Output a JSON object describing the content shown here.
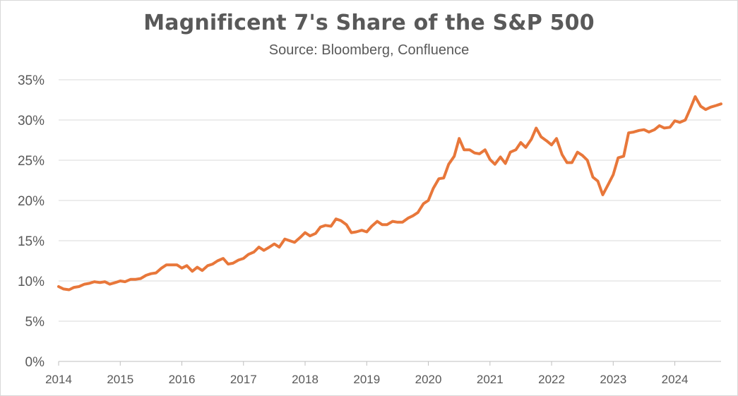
{
  "chart_data": {
    "type": "line",
    "title": "Magnificent 7's Share of the S&P 500",
    "subtitle": "Source: Bloomberg, Confluence",
    "xlabel": "",
    "ylabel": "",
    "xlim": [
      2014.0,
      2024.75
    ],
    "ylim": [
      0,
      35
    ],
    "x_ticks": [
      "2014",
      "2015",
      "2016",
      "2017",
      "2018",
      "2019",
      "2020",
      "2021",
      "2022",
      "2023",
      "2024"
    ],
    "y_ticks": [
      "0%",
      "5%",
      "10%",
      "15%",
      "20%",
      "25%",
      "30%",
      "35%"
    ],
    "grid": "horizontal",
    "series_color": "#E8773A",
    "series": [
      {
        "x": [
          2014.0,
          2014.08,
          2014.17,
          2014.25,
          2014.33,
          2014.42,
          2014.5,
          2014.58,
          2014.67,
          2014.75,
          2014.83,
          2014.92,
          2015.0,
          2015.08,
          2015.17,
          2015.25,
          2015.33,
          2015.42,
          2015.5,
          2015.58,
          2015.67,
          2015.75,
          2015.83,
          2015.92,
          2016.0,
          2016.08,
          2016.17,
          2016.25,
          2016.33,
          2016.42,
          2016.5,
          2016.58,
          2016.67,
          2016.75,
          2016.83,
          2016.92,
          2017.0,
          2017.08,
          2017.17,
          2017.25,
          2017.33,
          2017.42,
          2017.5,
          2017.58,
          2017.67,
          2017.75,
          2017.83,
          2017.92,
          2018.0,
          2018.08,
          2018.17,
          2018.25,
          2018.33,
          2018.42,
          2018.5,
          2018.58,
          2018.67,
          2018.75,
          2018.83,
          2018.92,
          2019.0,
          2019.08,
          2019.17,
          2019.25,
          2019.33,
          2019.42,
          2019.5,
          2019.58,
          2019.67,
          2019.75,
          2019.83,
          2019.92,
          2020.0,
          2020.08,
          2020.17,
          2020.25,
          2020.33,
          2020.42,
          2020.5,
          2020.58,
          2020.67,
          2020.75,
          2020.83,
          2020.92,
          2021.0,
          2021.08,
          2021.17,
          2021.25,
          2021.33,
          2021.42,
          2021.5,
          2021.58,
          2021.67,
          2021.75,
          2021.83,
          2021.92,
          2022.0,
          2022.08,
          2022.17,
          2022.25,
          2022.33,
          2022.42,
          2022.5,
          2022.58,
          2022.67,
          2022.75,
          2022.83,
          2022.92,
          2023.0,
          2023.08,
          2023.17,
          2023.25,
          2023.33,
          2023.42,
          2023.5,
          2023.58,
          2023.67,
          2023.75,
          2023.83,
          2023.92,
          2024.0,
          2024.08,
          2024.17,
          2024.25,
          2024.33,
          2024.42,
          2024.5,
          2024.58,
          2024.67,
          2024.75
        ],
        "values": [
          9.3,
          9.0,
          8.9,
          9.2,
          9.3,
          9.6,
          9.7,
          9.9,
          9.8,
          9.9,
          9.6,
          9.8,
          10.0,
          9.9,
          10.2,
          10.2,
          10.3,
          10.7,
          10.9,
          11.0,
          11.6,
          12.0,
          12.0,
          12.0,
          11.6,
          11.9,
          11.2,
          11.7,
          11.3,
          11.9,
          12.1,
          12.5,
          12.8,
          12.1,
          12.2,
          12.6,
          12.8,
          13.3,
          13.6,
          14.2,
          13.8,
          14.2,
          14.6,
          14.2,
          15.2,
          15.0,
          14.8,
          15.4,
          16.0,
          15.6,
          15.9,
          16.7,
          16.9,
          16.8,
          17.7,
          17.5,
          17.0,
          16.0,
          16.1,
          16.3,
          16.1,
          16.8,
          17.4,
          17.0,
          17.0,
          17.4,
          17.3,
          17.3,
          17.8,
          18.1,
          18.5,
          19.6,
          20.0,
          21.5,
          22.7,
          22.8,
          24.5,
          25.5,
          27.7,
          26.3,
          26.3,
          25.9,
          25.8,
          26.3,
          25.1,
          24.5,
          25.4,
          24.6,
          26.0,
          26.3,
          27.2,
          26.6,
          27.6,
          29.0,
          27.9,
          27.4,
          26.9,
          27.7,
          25.7,
          24.7,
          24.7,
          26.0,
          25.6,
          25.0,
          22.9,
          22.4,
          20.7,
          22.0,
          23.2,
          25.3,
          25.5,
          28.4,
          28.5,
          28.7,
          28.8,
          28.5,
          28.8,
          29.3,
          29.0,
          29.1,
          29.9,
          29.7,
          30.0,
          31.4,
          32.9,
          31.7,
          31.3,
          31.6,
          31.8,
          32.0
        ]
      }
    ]
  }
}
